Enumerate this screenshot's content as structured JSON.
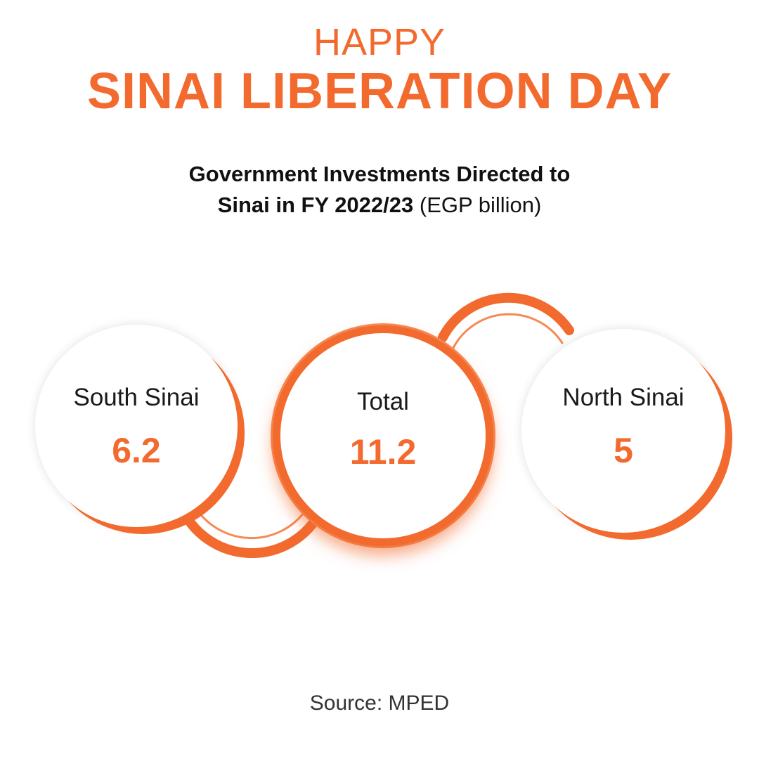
{
  "header": {
    "happy": "HAPPY",
    "title": "SINAI LIBERATION DAY"
  },
  "colors": {
    "accent": "#f26a2e",
    "text": "#1a1a1a"
  },
  "chart_data": {
    "type": "table",
    "title_bold_line1": "Government Investments Directed to",
    "title_bold_line2": "Sinai in FY 2022/23",
    "title_unit": "(EGP billion)",
    "categories": [
      "South Sinai",
      "Total",
      "North Sinai"
    ],
    "values": [
      "6.2",
      "11.2",
      "5"
    ]
  },
  "footer": {
    "source": "Source: MPED"
  }
}
